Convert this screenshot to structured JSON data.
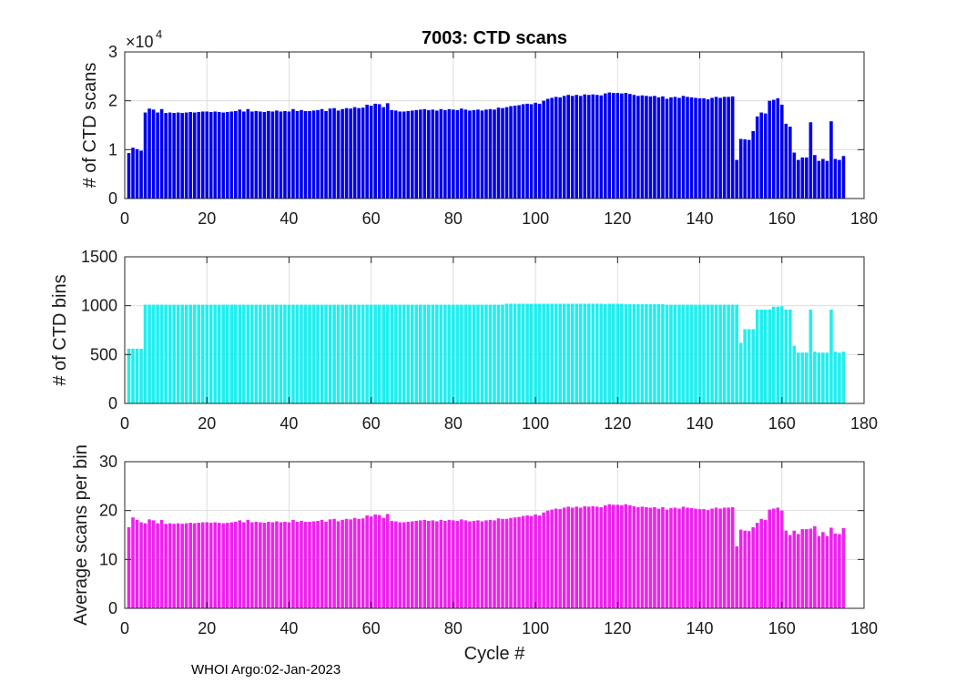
{
  "figure": {
    "footer": "WHOI Argo:02-Jan-2023"
  },
  "chart_data": [
    {
      "type": "bar",
      "title": "7003: CTD scans",
      "ylabel": "# of CTD scans",
      "xlabel": "",
      "xlim": [
        0,
        180
      ],
      "ylim": [
        0,
        30000
      ],
      "xticks": [
        "0",
        "20",
        "40",
        "60",
        "80",
        "100",
        "120",
        "140",
        "160",
        "180"
      ],
      "yticks": [
        "0",
        "1",
        "2",
        "3"
      ],
      "y_exponent_label": "×10",
      "y_exponent_power": "4",
      "grid": true,
      "color": "#0000ee",
      "series": [
        {
          "values": [
            9300,
            10400,
            10100,
            9800,
            17600,
            18400,
            18200,
            17600,
            18300,
            17500,
            17600,
            17500,
            17600,
            17500,
            17600,
            17700,
            17600,
            17700,
            17800,
            17800,
            17700,
            17800,
            17700,
            17600,
            17700,
            17800,
            17900,
            18200,
            17800,
            18300,
            17800,
            17900,
            17800,
            17700,
            17900,
            17800,
            18000,
            17800,
            17900,
            17800,
            18300,
            17900,
            18100,
            17900,
            17900,
            18000,
            18100,
            18300,
            17900,
            18400,
            18500,
            18000,
            18300,
            18500,
            18400,
            18700,
            18500,
            18600,
            19200,
            19000,
            19400,
            19300,
            18700,
            19500,
            18100,
            18000,
            17800,
            17800,
            17900,
            18000,
            18100,
            18200,
            18300,
            18100,
            18200,
            18000,
            18300,
            18100,
            18300,
            18200,
            18100,
            18400,
            18200,
            18000,
            18100,
            18200,
            18000,
            18200,
            18300,
            18200,
            18600,
            18500,
            18700,
            18900,
            19000,
            19100,
            19300,
            19400,
            19300,
            19600,
            19400,
            20000,
            20400,
            20600,
            20800,
            20700,
            21000,
            21200,
            21000,
            21200,
            21000,
            21300,
            21200,
            21300,
            21200,
            21100,
            21500,
            21700,
            21600,
            21600,
            21500,
            21600,
            21400,
            21200,
            21000,
            21100,
            21000,
            20900,
            21000,
            20700,
            20900,
            20400,
            20700,
            20800,
            20600,
            21000,
            20800,
            20700,
            20600,
            20500,
            20500,
            20300,
            20600,
            20800,
            20600,
            20800,
            20800,
            20900,
            7900,
            12200,
            12100,
            12000,
            13800,
            16800,
            17600,
            17400,
            20000,
            20200,
            20500,
            19200,
            15300,
            14700,
            9400,
            7900,
            8400,
            8400,
            15600,
            8900,
            7700,
            8100,
            7700,
            15800,
            8100,
            7900,
            8700
          ]
        }
      ]
    },
    {
      "type": "bar",
      "title": "",
      "ylabel": "# of CTD bins",
      "xlabel": "",
      "xlim": [
        0,
        180
      ],
      "ylim": [
        0,
        1500
      ],
      "xticks": [
        "0",
        "20",
        "40",
        "60",
        "80",
        "100",
        "120",
        "140",
        "160",
        "180"
      ],
      "yticks": [
        "0",
        "500",
        "1000",
        "1500"
      ],
      "grid": true,
      "color": "#22eeee",
      "series": [
        {
          "values": [
            560,
            560,
            560,
            560,
            1010,
            1010,
            1010,
            1010,
            1010,
            1010,
            1010,
            1010,
            1010,
            1010,
            1010,
            1010,
            1010,
            1010,
            1010,
            1010,
            1010,
            1010,
            1010,
            1010,
            1010,
            1010,
            1010,
            1010,
            1010,
            1010,
            1010,
            1010,
            1010,
            1010,
            1010,
            1010,
            1010,
            1010,
            1010,
            1010,
            1010,
            1010,
            1010,
            1010,
            1010,
            1010,
            1010,
            1010,
            1010,
            1010,
            1010,
            1010,
            1010,
            1010,
            1010,
            1010,
            1010,
            1010,
            1010,
            1010,
            1010,
            1010,
            1010,
            1010,
            1010,
            1010,
            1010,
            1010,
            1010,
            1010,
            1010,
            1010,
            1010,
            1010,
            1010,
            1010,
            1010,
            1010,
            1010,
            1010,
            1010,
            1010,
            1010,
            1010,
            1010,
            1010,
            1010,
            1010,
            1010,
            1010,
            1010,
            1010,
            1020,
            1020,
            1020,
            1020,
            1020,
            1020,
            1020,
            1020,
            1020,
            1020,
            1020,
            1020,
            1020,
            1020,
            1020,
            1020,
            1020,
            1020,
            1020,
            1020,
            1020,
            1020,
            1020,
            1020,
            1015,
            1020,
            1020,
            1020,
            1020,
            1015,
            1015,
            1015,
            1015,
            1015,
            1015,
            1015,
            1015,
            1015,
            1015,
            1010,
            1010,
            1010,
            1010,
            1010,
            1010,
            1010,
            1010,
            1010,
            1010,
            1010,
            1010,
            1010,
            1010,
            1010,
            1010,
            1010,
            1010,
            620,
            760,
            760,
            760,
            960,
            960,
            960,
            960,
            990,
            990,
            995,
            960,
            960,
            590,
            520,
            520,
            520,
            960,
            530,
            520,
            520,
            520,
            960,
            530,
            520,
            530
          ]
        }
      ]
    },
    {
      "type": "bar",
      "title": "",
      "ylabel": "Average scans per bin",
      "xlabel": "Cycle #",
      "xlim": [
        0,
        180
      ],
      "ylim": [
        0,
        30
      ],
      "xticks": [
        "0",
        "20",
        "40",
        "60",
        "80",
        "100",
        "120",
        "140",
        "160",
        "180"
      ],
      "yticks": [
        "0",
        "10",
        "20",
        "30"
      ],
      "grid": true,
      "color": "#ee22ee",
      "series": [
        {
          "values": [
            16.6,
            18.6,
            18.1,
            17.6,
            17.4,
            18.2,
            18.0,
            17.4,
            18.1,
            17.3,
            17.4,
            17.3,
            17.4,
            17.3,
            17.4,
            17.5,
            17.4,
            17.5,
            17.6,
            17.6,
            17.5,
            17.6,
            17.5,
            17.4,
            17.5,
            17.6,
            17.7,
            18.0,
            17.6,
            18.1,
            17.6,
            17.7,
            17.6,
            17.5,
            17.7,
            17.6,
            17.8,
            17.6,
            17.7,
            17.6,
            18.1,
            17.7,
            17.9,
            17.7,
            17.7,
            17.8,
            17.9,
            18.1,
            17.7,
            18.2,
            18.3,
            17.8,
            18.1,
            18.3,
            18.2,
            18.5,
            18.3,
            18.4,
            19.0,
            18.8,
            19.2,
            19.1,
            18.5,
            19.3,
            17.9,
            17.8,
            17.6,
            17.6,
            17.7,
            17.8,
            17.9,
            18.0,
            18.1,
            17.9,
            18.0,
            17.8,
            18.1,
            17.9,
            18.1,
            18.0,
            17.9,
            18.2,
            18.0,
            17.8,
            17.9,
            18.0,
            17.8,
            18.0,
            18.1,
            18.0,
            18.4,
            18.3,
            18.3,
            18.5,
            18.6,
            18.7,
            18.9,
            19.0,
            18.9,
            19.2,
            19.0,
            19.6,
            20.0,
            20.2,
            20.4,
            20.3,
            20.6,
            20.8,
            20.6,
            20.8,
            20.6,
            20.9,
            20.8,
            20.9,
            20.8,
            20.7,
            21.1,
            21.3,
            21.2,
            21.2,
            21.1,
            21.3,
            21.1,
            20.9,
            20.7,
            20.8,
            20.7,
            20.6,
            20.7,
            20.4,
            20.7,
            20.2,
            20.5,
            20.6,
            20.4,
            20.8,
            20.6,
            20.5,
            20.4,
            20.3,
            20.3,
            20.1,
            20.4,
            20.6,
            20.4,
            20.6,
            20.6,
            20.7,
            12.7,
            16.1,
            15.9,
            15.8,
            16.6,
            17.5,
            18.3,
            18.1,
            20.2,
            20.4,
            20.6,
            20.0,
            15.9,
            15.0,
            15.9,
            15.2,
            16.2,
            16.2,
            16.3,
            16.8,
            14.8,
            15.6,
            14.8,
            16.5,
            15.3,
            15.2,
            16.4
          ]
        }
      ]
    }
  ]
}
